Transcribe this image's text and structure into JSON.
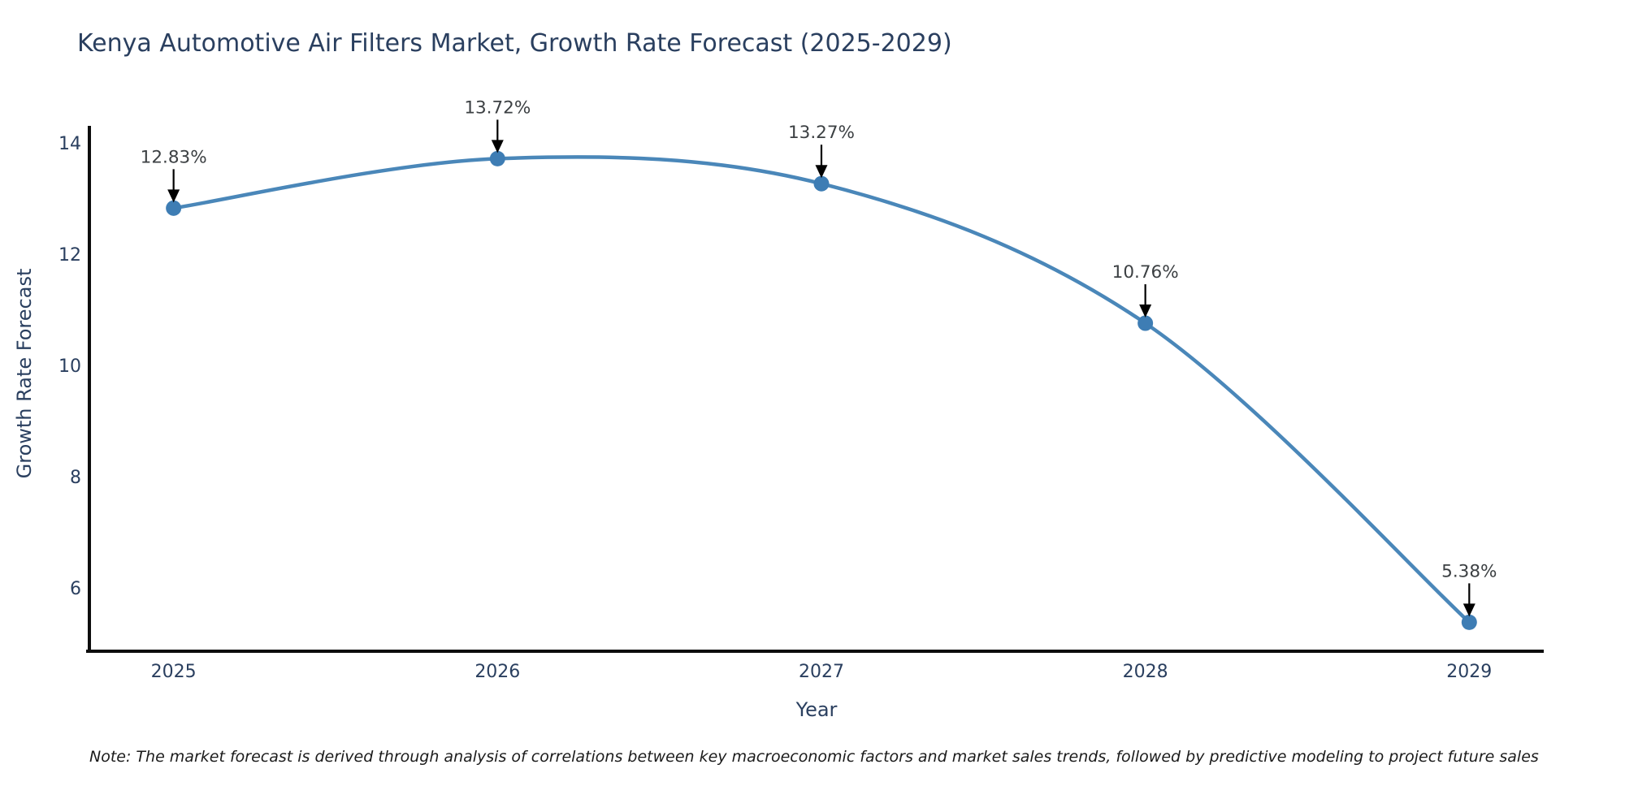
{
  "title": "Kenya Automotive Air Filters Market, Growth Rate Forecast (2025-2029)",
  "note": "Note: The market forecast is derived through analysis of correlations between key macroeconomic factors and market sales trends, followed by predictive modeling to project future sales",
  "chart_data": {
    "type": "line",
    "line_shape": "spline",
    "categories": [
      "2025",
      "2026",
      "2027",
      "2028",
      "2029"
    ],
    "x": [
      2025,
      2026,
      2027,
      2028,
      2029
    ],
    "series": [
      {
        "name": "Growth Rate Forecast",
        "values": [
          12.83,
          13.72,
          13.27,
          10.76,
          5.38
        ]
      }
    ],
    "point_labels": [
      "12.83%",
      "13.72%",
      "13.27%",
      "10.76%",
      "5.38%"
    ],
    "title": "Kenya Automotive Air Filters Market, Growth Rate Forecast (2025-2029)",
    "xlabel": "Year",
    "ylabel": "Growth Rate Forecast",
    "yticks": [
      6,
      8,
      10,
      12,
      14
    ],
    "ylim": [
      4.86,
      14.31
    ],
    "xlim": [
      2024.74,
      2029.23
    ],
    "grid": false,
    "legend": "none",
    "colors": {
      "line": "#4a87b9",
      "marker": "#3e7db4",
      "axis": "#0d0d0d",
      "arrow": "#000000",
      "title_text": "#2a3f5f",
      "tick_text": "#2a3f5f",
      "annotation_text": "#3c4043"
    }
  }
}
